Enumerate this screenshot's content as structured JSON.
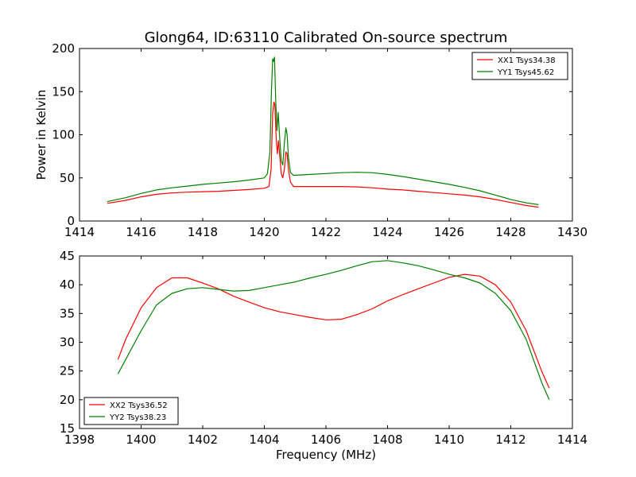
{
  "figure": {
    "title": "Glong64, ID:63110 Calibrated On-source spectrum"
  },
  "chart_data": [
    {
      "type": "line",
      "title": "Glong64, ID:63110 Calibrated On-source spectrum",
      "xlabel": "",
      "ylabel": "Power in Kelvin",
      "xlim": [
        1414,
        1430
      ],
      "ylim": [
        0,
        200
      ],
      "xticks": [
        1414,
        1416,
        1418,
        1420,
        1422,
        1424,
        1426,
        1428,
        1430
      ],
      "yticks": [
        0,
        50,
        100,
        150,
        200
      ],
      "legend_position": "top-right",
      "grid": false,
      "series": [
        {
          "name": "XX1 Tsys34.38",
          "color": "#ff0000",
          "points": [
            [
              1414.9,
              20.5
            ],
            [
              1415.5,
              24
            ],
            [
              1416,
              28
            ],
            [
              1416.5,
              31
            ],
            [
              1417,
              32.5
            ],
            [
              1417.5,
              33.5
            ],
            [
              1418,
              34
            ],
            [
              1418.5,
              34.5
            ],
            [
              1419,
              35.5
            ],
            [
              1419.5,
              36.5
            ],
            [
              1420,
              38
            ],
            [
              1420.15,
              40
            ],
            [
              1420.22,
              60
            ],
            [
              1420.27,
              125
            ],
            [
              1420.31,
              138
            ],
            [
              1420.34,
              135
            ],
            [
              1420.38,
              100
            ],
            [
              1420.42,
              78
            ],
            [
              1420.46,
              93
            ],
            [
              1420.5,
              75
            ],
            [
              1420.55,
              55
            ],
            [
              1420.6,
              50
            ],
            [
              1420.65,
              60
            ],
            [
              1420.7,
              80
            ],
            [
              1420.74,
              78
            ],
            [
              1420.78,
              60
            ],
            [
              1420.85,
              45
            ],
            [
              1420.95,
              40
            ],
            [
              1421.5,
              40
            ],
            [
              1422,
              40
            ],
            [
              1422.5,
              40
            ],
            [
              1423,
              39.5
            ],
            [
              1423.5,
              38.5
            ],
            [
              1424,
              37
            ],
            [
              1424.5,
              36
            ],
            [
              1425,
              34.5
            ],
            [
              1425.5,
              33
            ],
            [
              1426,
              31.5
            ],
            [
              1426.5,
              30
            ],
            [
              1427,
              28
            ],
            [
              1427.5,
              25
            ],
            [
              1428,
              21.5
            ],
            [
              1428.5,
              18
            ],
            [
              1428.9,
              16
            ]
          ]
        },
        {
          "name": "YY1 Tsys45.62",
          "color": "#008000",
          "points": [
            [
              1414.9,
              22.5
            ],
            [
              1415.5,
              27
            ],
            [
              1416,
              32
            ],
            [
              1416.5,
              36
            ],
            [
              1417,
              38.5
            ],
            [
              1417.5,
              40.5
            ],
            [
              1418,
              42.5
            ],
            [
              1418.5,
              44
            ],
            [
              1419,
              45.5
            ],
            [
              1419.5,
              47.5
            ],
            [
              1420,
              50
            ],
            [
              1420.1,
              55
            ],
            [
              1420.18,
              80
            ],
            [
              1420.23,
              150
            ],
            [
              1420.27,
              188
            ],
            [
              1420.3,
              185
            ],
            [
              1420.33,
              190
            ],
            [
              1420.37,
              140
            ],
            [
              1420.41,
              105
            ],
            [
              1420.45,
              126
            ],
            [
              1420.5,
              95
            ],
            [
              1420.55,
              70
            ],
            [
              1420.6,
              65
            ],
            [
              1420.65,
              90
            ],
            [
              1420.7,
              108
            ],
            [
              1420.74,
              100
            ],
            [
              1420.78,
              75
            ],
            [
              1420.85,
              56
            ],
            [
              1420.95,
              53
            ],
            [
              1421.5,
              54
            ],
            [
              1422,
              55
            ],
            [
              1422.5,
              56
            ],
            [
              1423,
              56.5
            ],
            [
              1423.5,
              56
            ],
            [
              1424,
              54
            ],
            [
              1424.5,
              51.5
            ],
            [
              1425,
              48.5
            ],
            [
              1425.5,
              45.5
            ],
            [
              1426,
              42.5
            ],
            [
              1426.5,
              39
            ],
            [
              1427,
              35
            ],
            [
              1427.5,
              30
            ],
            [
              1428,
              25
            ],
            [
              1428.5,
              21
            ],
            [
              1428.9,
              19
            ]
          ]
        }
      ]
    },
    {
      "type": "line",
      "title": "",
      "xlabel": "Frequency (MHz)",
      "ylabel": "",
      "xlim": [
        1398,
        1414
      ],
      "ylim": [
        15,
        45
      ],
      "xticks": [
        1398,
        1400,
        1402,
        1404,
        1406,
        1408,
        1410,
        1412,
        1414
      ],
      "yticks": [
        15,
        20,
        25,
        30,
        35,
        40,
        45
      ],
      "legend_position": "bottom-left",
      "grid": false,
      "series": [
        {
          "name": "XX2 Tsys36.52",
          "color": "#ff0000",
          "points": [
            [
              1399.25,
              27
            ],
            [
              1399.5,
              30.5
            ],
            [
              1400,
              36
            ],
            [
              1400.5,
              39.5
            ],
            [
              1401,
              41.2
            ],
            [
              1401.5,
              41.2
            ],
            [
              1402,
              40.3
            ],
            [
              1402.5,
              39.3
            ],
            [
              1403,
              38
            ],
            [
              1403.5,
              37
            ],
            [
              1404,
              36
            ],
            [
              1404.5,
              35.3
            ],
            [
              1405,
              34.8
            ],
            [
              1405.5,
              34.3
            ],
            [
              1406,
              33.9
            ],
            [
              1406.5,
              34
            ],
            [
              1407,
              34.8
            ],
            [
              1407.5,
              35.8
            ],
            [
              1408,
              37.2
            ],
            [
              1408.5,
              38.3
            ],
            [
              1409,
              39.3
            ],
            [
              1409.5,
              40.3
            ],
            [
              1410,
              41.3
            ],
            [
              1410.5,
              41.8
            ],
            [
              1411,
              41.5
            ],
            [
              1411.5,
              40
            ],
            [
              1412,
              37
            ],
            [
              1412.5,
              32
            ],
            [
              1413,
              25
            ],
            [
              1413.25,
              22
            ]
          ]
        },
        {
          "name": "YY2 Tsys38.23",
          "color": "#008000",
          "points": [
            [
              1399.25,
              24.5
            ],
            [
              1399.5,
              27
            ],
            [
              1400,
              32
            ],
            [
              1400.5,
              36.5
            ],
            [
              1401,
              38.5
            ],
            [
              1401.5,
              39.3
            ],
            [
              1402,
              39.5
            ],
            [
              1402.5,
              39.2
            ],
            [
              1403,
              38.9
            ],
            [
              1403.5,
              39
            ],
            [
              1404,
              39.5
            ],
            [
              1404.5,
              40
            ],
            [
              1405,
              40.5
            ],
            [
              1405.5,
              41.2
            ],
            [
              1406,
              41.8
            ],
            [
              1406.5,
              42.5
            ],
            [
              1407,
              43.3
            ],
            [
              1407.5,
              44
            ],
            [
              1408,
              44.2
            ],
            [
              1408.5,
              43.8
            ],
            [
              1409,
              43.3
            ],
            [
              1409.5,
              42.6
            ],
            [
              1410,
              41.8
            ],
            [
              1410.5,
              41.2
            ],
            [
              1411,
              40.3
            ],
            [
              1411.5,
              38.5
            ],
            [
              1412,
              35.5
            ],
            [
              1412.5,
              30.5
            ],
            [
              1413,
              23
            ],
            [
              1413.25,
              20
            ]
          ]
        }
      ]
    }
  ]
}
